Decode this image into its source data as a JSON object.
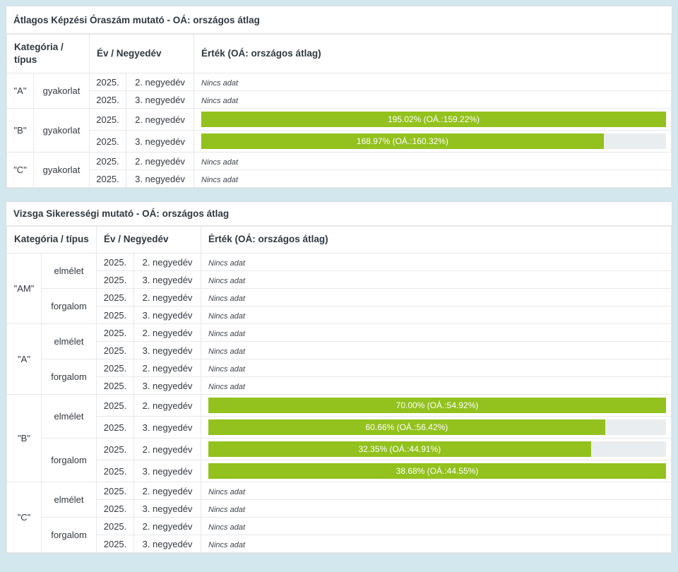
{
  "colors": {
    "page_background": "#d3e7ee",
    "bar_green": "#93c11e",
    "bar_track": "#e9edf0"
  },
  "no_data_label": "Nincs adat",
  "tables": [
    {
      "title": "Átlagos Képzési Óraszám mutató - OÁ: országos átlag",
      "columns": {
        "category": "Kategória / típus",
        "period": "Év / Negyedév",
        "value": "Érték (OÁ: országos átlag)"
      },
      "groups": [
        {
          "category": "\"A\"",
          "types": [
            {
              "type": "gyakorlat",
              "rows": [
                {
                  "year": "2025.",
                  "quarter": "2. negyedév",
                  "no_data": true
                },
                {
                  "year": "2025.",
                  "quarter": "3. negyedév",
                  "no_data": true
                }
              ]
            }
          ]
        },
        {
          "category": "\"B\"",
          "types": [
            {
              "type": "gyakorlat",
              "rows": [
                {
                  "year": "2025.",
                  "quarter": "2. negyedév",
                  "bar": {
                    "label": "195.02% (OÁ.:159.22%)",
                    "value": 195.02,
                    "national_average": 159.22,
                    "width_percent": 100
                  }
                },
                {
                  "year": "2025.",
                  "quarter": "3. negyedév",
                  "bar": {
                    "label": "168.97% (OÁ.:160.32%)",
                    "value": 168.97,
                    "national_average": 160.32,
                    "width_percent": 86.6
                  }
                }
              ]
            }
          ]
        },
        {
          "category": "\"C\"",
          "types": [
            {
              "type": "gyakorlat",
              "rows": [
                {
                  "year": "2025.",
                  "quarter": "2. negyedév",
                  "no_data": true
                },
                {
                  "year": "2025.",
                  "quarter": "3. negyedév",
                  "no_data": true
                }
              ]
            }
          ]
        }
      ]
    },
    {
      "title": "Vizsga Sikerességi mutató - OÁ: országos átlag",
      "columns": {
        "category": "Kategória / típus",
        "period": "Év / Negyedév",
        "value": "Érték (OÁ: országos átlag)"
      },
      "groups": [
        {
          "category": "\"AM\"",
          "types": [
            {
              "type": "elmélet",
              "rows": [
                {
                  "year": "2025.",
                  "quarter": "2. negyedév",
                  "no_data": true
                },
                {
                  "year": "2025.",
                  "quarter": "3. negyedév",
                  "no_data": true
                }
              ]
            },
            {
              "type": "forgalom",
              "rows": [
                {
                  "year": "2025.",
                  "quarter": "2. negyedév",
                  "no_data": true
                },
                {
                  "year": "2025.",
                  "quarter": "3. negyedév",
                  "no_data": true
                }
              ]
            }
          ]
        },
        {
          "category": "\"A\"",
          "types": [
            {
              "type": "elmélet",
              "rows": [
                {
                  "year": "2025.",
                  "quarter": "2. negyedév",
                  "no_data": true
                },
                {
                  "year": "2025.",
                  "quarter": "3. negyedév",
                  "no_data": true
                }
              ]
            },
            {
              "type": "forgalom",
              "rows": [
                {
                  "year": "2025.",
                  "quarter": "2. negyedév",
                  "no_data": true
                },
                {
                  "year": "2025.",
                  "quarter": "3. negyedév",
                  "no_data": true
                }
              ]
            }
          ]
        },
        {
          "category": "\"B\"",
          "types": [
            {
              "type": "elmélet",
              "rows": [
                {
                  "year": "2025.",
                  "quarter": "2. negyedév",
                  "bar": {
                    "label": "70.00% (OÁ.:54.92%)",
                    "value": 70.0,
                    "national_average": 54.92,
                    "width_percent": 100
                  }
                },
                {
                  "year": "2025.",
                  "quarter": "3. negyedév",
                  "bar": {
                    "label": "60.66% (OÁ.:56.42%)",
                    "value": 60.66,
                    "national_average": 56.42,
                    "width_percent": 86.7
                  }
                }
              ]
            },
            {
              "type": "forgalom",
              "rows": [
                {
                  "year": "2025.",
                  "quarter": "2. negyedév",
                  "bar": {
                    "label": "32.35% (OÁ.:44.91%)",
                    "value": 32.35,
                    "national_average": 44.91,
                    "width_percent": 83.6
                  }
                },
                {
                  "year": "2025.",
                  "quarter": "3. negyedév",
                  "bar": {
                    "label": "38.68% (OÁ.:44.55%)",
                    "value": 38.68,
                    "national_average": 44.55,
                    "width_percent": 100
                  }
                }
              ]
            }
          ]
        },
        {
          "category": "\"C\"",
          "types": [
            {
              "type": "elmélet",
              "rows": [
                {
                  "year": "2025.",
                  "quarter": "2. negyedév",
                  "no_data": true
                },
                {
                  "year": "2025.",
                  "quarter": "3. negyedév",
                  "no_data": true
                }
              ]
            },
            {
              "type": "forgalom",
              "rows": [
                {
                  "year": "2025.",
                  "quarter": "2. negyedév",
                  "no_data": true
                },
                {
                  "year": "2025.",
                  "quarter": "3. negyedév",
                  "no_data": true
                }
              ]
            }
          ]
        }
      ]
    }
  ]
}
